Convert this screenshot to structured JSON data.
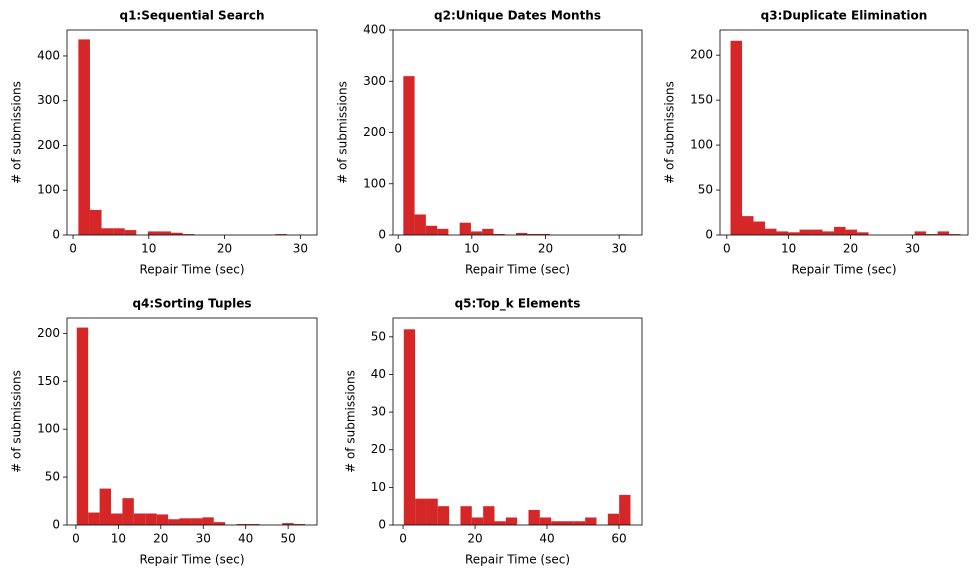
{
  "chart_data": [
    {
      "type": "histogram",
      "title": "q1:Sequential Search",
      "xlabel": "Repair Time (sec)",
      "ylabel": "# of submissions",
      "color": "#d62728",
      "bins": [
        0.7,
        2.23,
        3.76,
        5.29,
        6.82,
        8.35,
        9.88,
        11.41,
        12.94,
        14.47,
        16,
        17.53,
        19.06,
        20.59,
        22.12,
        23.65,
        25.18,
        26.71,
        28.24,
        29.77,
        31.3
      ],
      "values": [
        437,
        56,
        15,
        15,
        11,
        0,
        8,
        8,
        5,
        2,
        0,
        0,
        0,
        0,
        0,
        0,
        0,
        2,
        0,
        0
      ],
      "xlim": [
        -0.8,
        32.2
      ],
      "xticks": [
        0,
        10,
        20,
        30
      ],
      "ylim": [
        0,
        458
      ],
      "yticks": [
        0,
        100,
        200,
        300,
        400
      ]
    },
    {
      "type": "histogram",
      "title": "q2:Unique Dates Months",
      "xlabel": "Repair Time (sec)",
      "ylabel": "# of submissions",
      "color": "#d62728",
      "bins": [
        0.7,
        2.23,
        3.76,
        5.29,
        6.82,
        8.35,
        9.88,
        11.41,
        12.94,
        14.47,
        16,
        17.53,
        19.06,
        20.59,
        22.12,
        23.65,
        25.18,
        26.71,
        28.24,
        29.77,
        31.3
      ],
      "values": [
        310,
        40,
        18,
        12,
        0,
        24,
        7,
        12,
        2,
        0,
        4,
        2,
        2,
        0,
        0,
        0,
        0,
        0,
        0,
        1
      ],
      "xlim": [
        -0.7,
        33.1
      ],
      "xticks": [
        0,
        10,
        20,
        30
      ],
      "ylim": [
        0,
        400
      ],
      "yticks": [
        0,
        100,
        200,
        300,
        400
      ]
    },
    {
      "type": "histogram",
      "title": "q3:Duplicate Elimination",
      "xlabel": "Repair Time (sec)",
      "ylabel": "# of submissions",
      "color": "#d62728",
      "bins": [
        0.6,
        2.46,
        4.32,
        6.18,
        8.04,
        9.9,
        11.76,
        13.62,
        15.48,
        17.34,
        19.2,
        21.06,
        22.92,
        24.78,
        26.64,
        28.5,
        30.36,
        32.22,
        34.08,
        35.94,
        37.8
      ],
      "values": [
        216,
        21,
        15,
        7,
        4,
        3,
        6,
        6,
        4,
        9,
        6,
        3,
        0,
        0,
        0,
        0,
        4,
        1,
        4,
        1
      ],
      "xlim": [
        -1.1,
        39
      ],
      "xticks": [
        0,
        10,
        20,
        30
      ],
      "ylim": [
        0,
        228
      ],
      "yticks": [
        0,
        50,
        100,
        150,
        200
      ]
    },
    {
      "type": "histogram",
      "title": "q4:Sorting Tuples",
      "xlabel": "Repair Time (sec)",
      "ylabel": "# of submissions",
      "color": "#d62728",
      "bins": [
        0.2,
        2.89,
        5.58,
        8.27,
        10.96,
        13.65,
        16.34,
        19.03,
        21.72,
        24.41,
        27.1,
        29.79,
        32.48,
        35.17,
        37.86,
        40.55,
        43.24,
        45.93,
        48.62,
        51.31,
        54
      ],
      "values": [
        206,
        13,
        38,
        12,
        28,
        12,
        12,
        11,
        6,
        7,
        7,
        8,
        3,
        0,
        1,
        1,
        0,
        0,
        2,
        1
      ],
      "xlim": [
        -2.1,
        56.8
      ],
      "xticks": [
        0,
        10,
        20,
        30,
        40,
        50
      ],
      "ylim": [
        0,
        216
      ],
      "yticks": [
        0,
        50,
        100,
        150,
        200
      ]
    },
    {
      "type": "histogram",
      "title": "q5:Top_k Elements",
      "xlabel": "Repair Time (sec)",
      "ylabel": "# of submissions",
      "color": "#d62728",
      "bins": [
        0.2,
        3.35,
        6.5,
        9.65,
        12.8,
        15.95,
        19.1,
        22.25,
        25.4,
        28.55,
        31.7,
        34.85,
        38,
        41.15,
        44.3,
        47.45,
        50.6,
        53.75,
        56.9,
        60.05,
        63.2
      ],
      "values": [
        52,
        7,
        7,
        5,
        0,
        5,
        2,
        5,
        1,
        2,
        0,
        4,
        2,
        1,
        1,
        1,
        2,
        0,
        3,
        8
      ],
      "xlim": [
        -2.8,
        66.4
      ],
      "xticks": [
        0,
        20,
        40,
        60
      ],
      "ylim": [
        0,
        55
      ],
      "yticks": [
        0,
        10,
        20,
        30,
        40,
        50
      ]
    }
  ]
}
